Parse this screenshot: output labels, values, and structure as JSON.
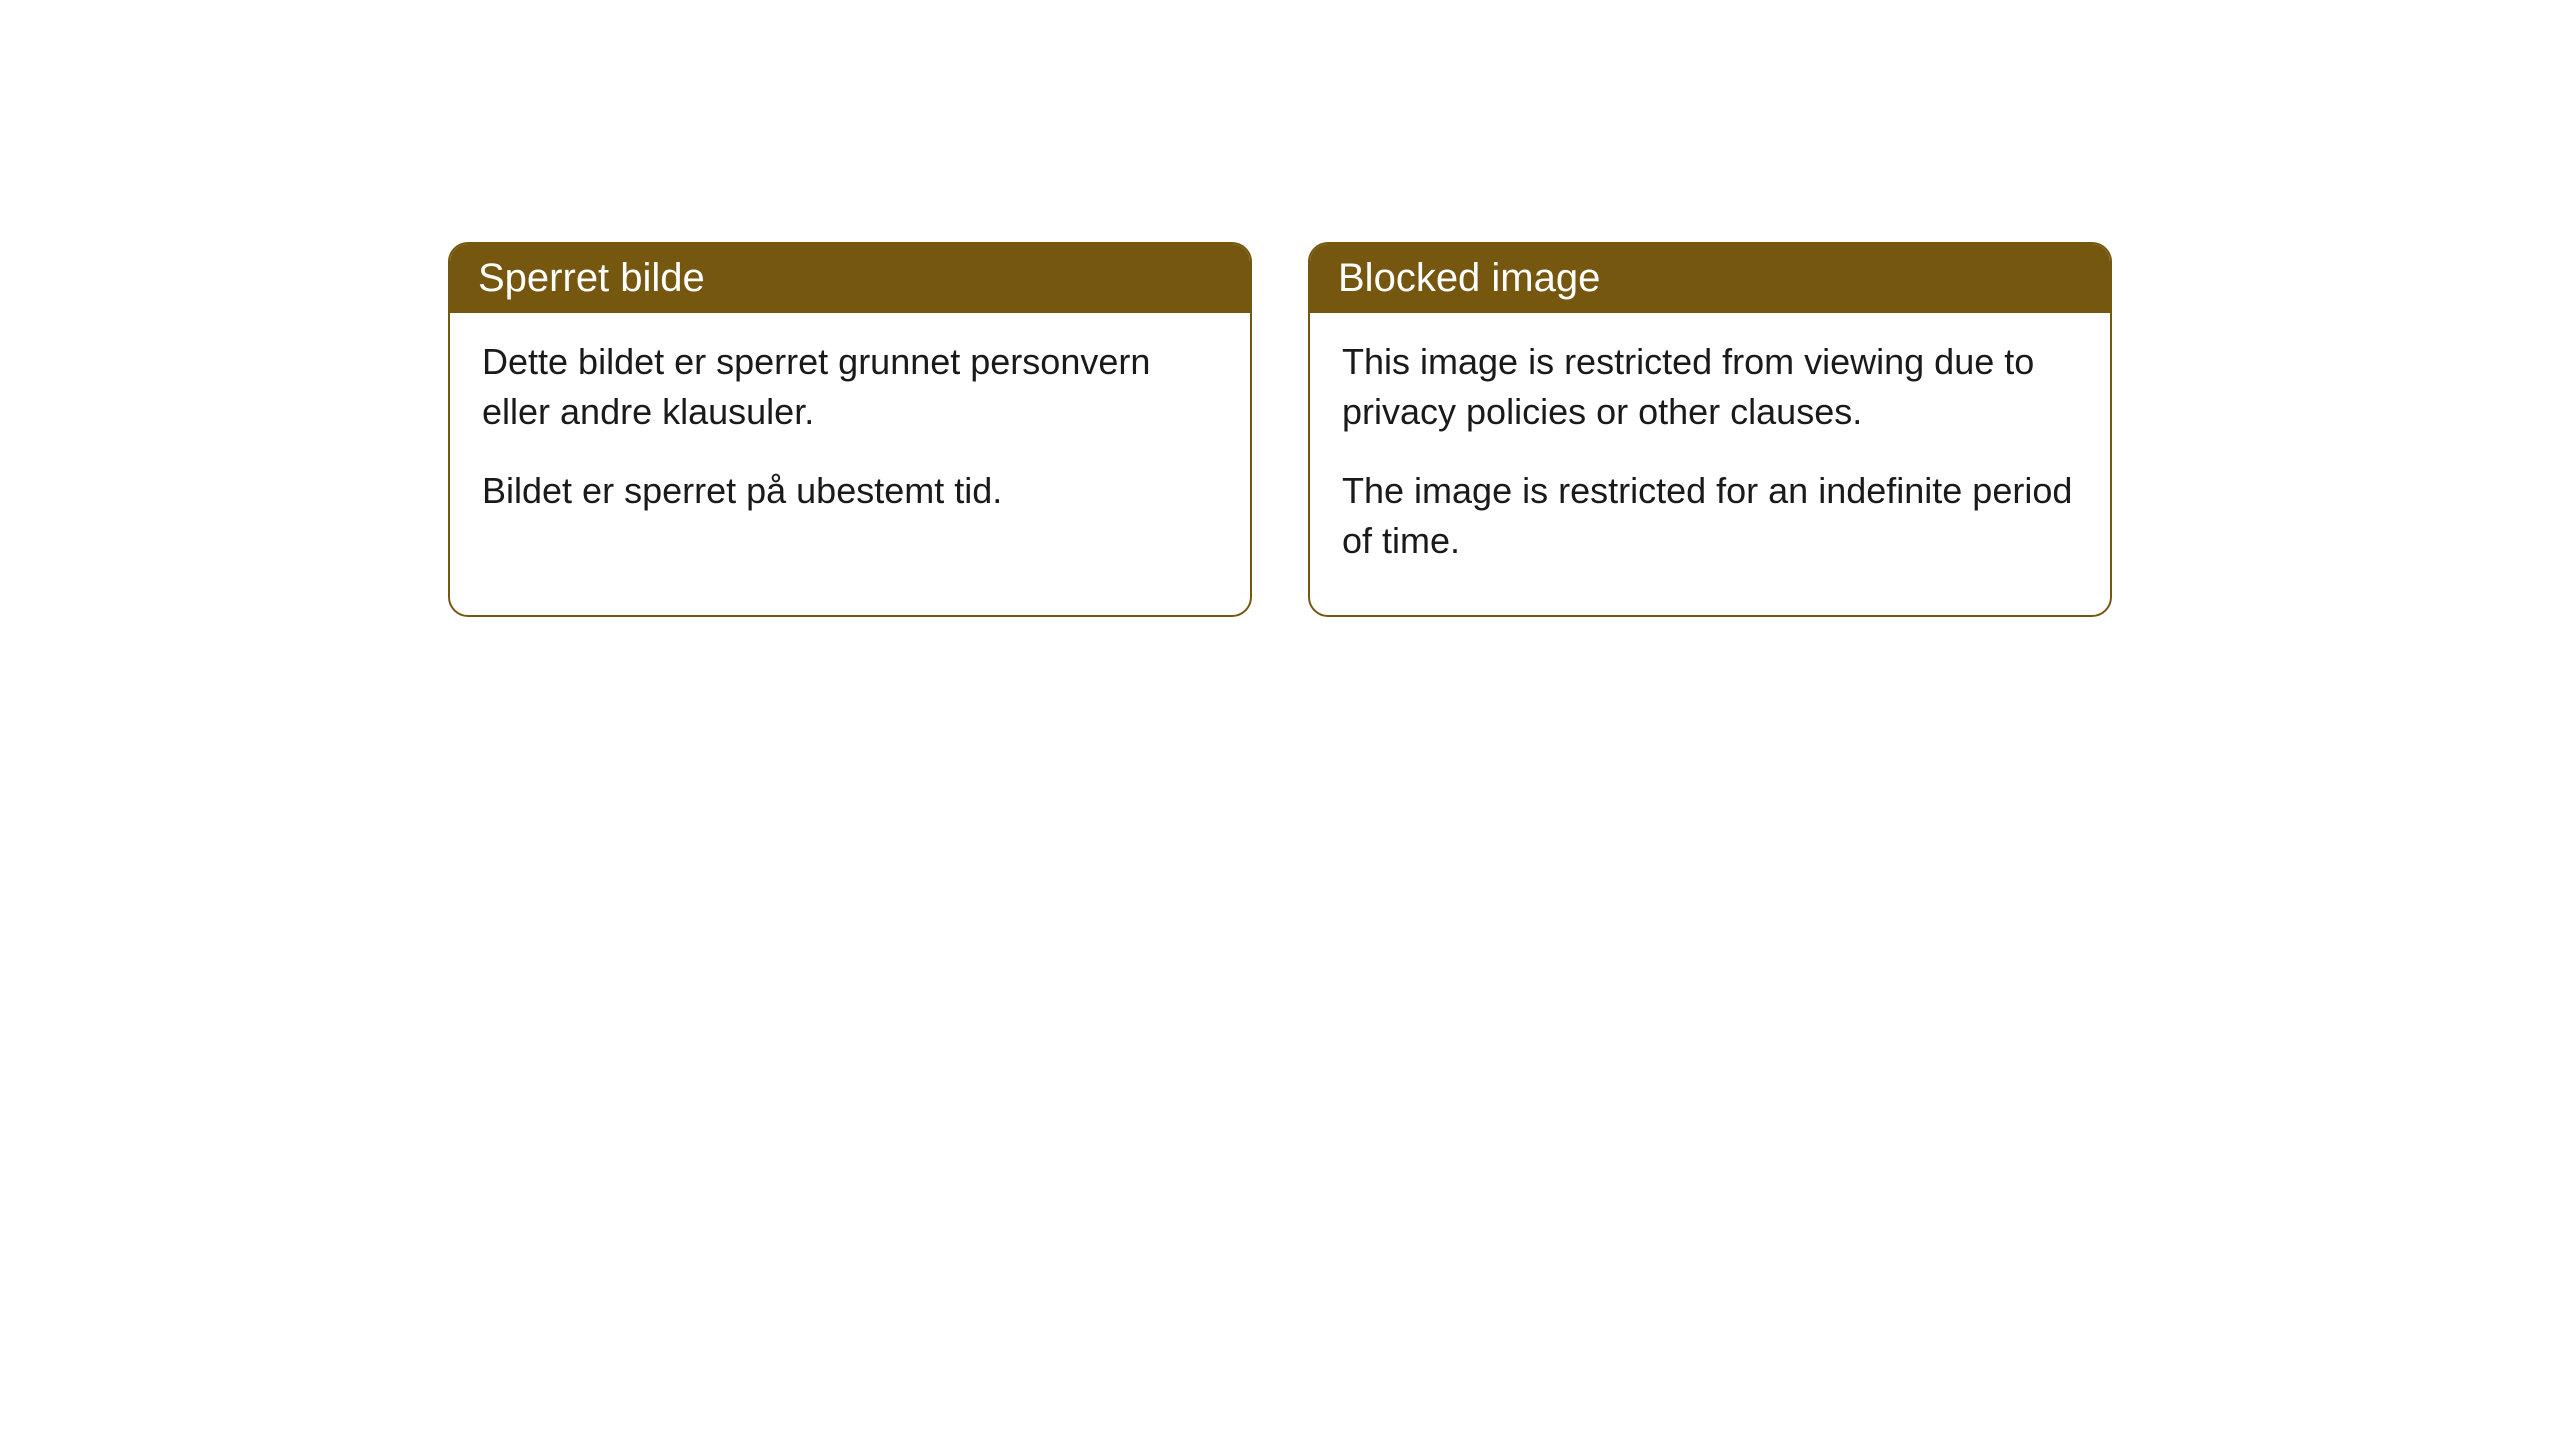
{
  "cards": [
    {
      "title": "Sperret bilde",
      "paragraph1": "Dette bildet er sperret grunnet personvern eller andre klausuler.",
      "paragraph2": "Bildet er sperret på ubestemt tid."
    },
    {
      "title": "Blocked image",
      "paragraph1": "This image is restricted from viewing due to privacy policies or other clauses.",
      "paragraph2": "The image is restricted for an indefinite period of time."
    }
  ],
  "style": {
    "header_bg_color": "#765710",
    "header_text_color": "#ffffff",
    "border_color": "#765710",
    "body_bg_color": "#ffffff",
    "body_text_color": "#1a1a1a",
    "border_radius": 20,
    "title_fontsize": 40,
    "body_fontsize": 36
  }
}
